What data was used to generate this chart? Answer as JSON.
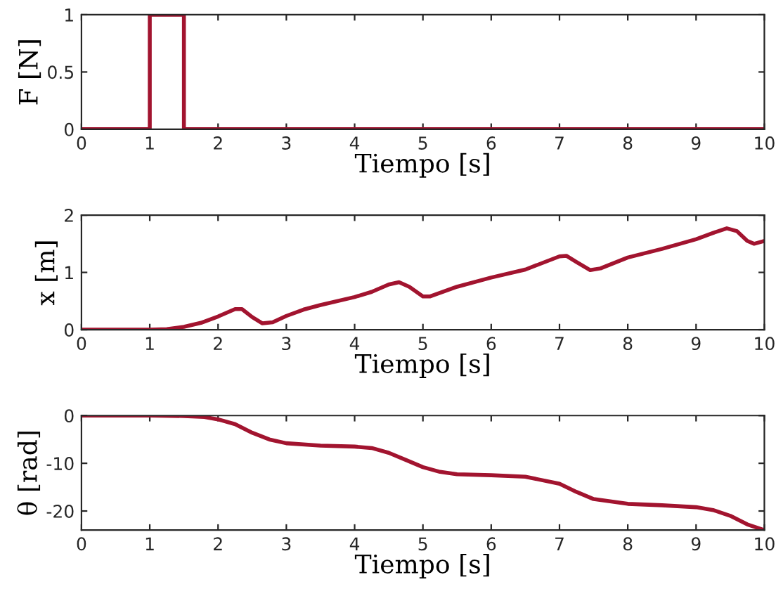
{
  "chart_data": [
    {
      "type": "line",
      "xlabel": "Tiempo [s]",
      "ylabel": "F [N]",
      "xlim": [
        0,
        10
      ],
      "ylim": [
        0,
        1
      ],
      "xticks": [
        0,
        1,
        2,
        3,
        4,
        5,
        6,
        7,
        8,
        9,
        10
      ],
      "yticks": [
        0,
        0.5,
        1
      ],
      "grid": false,
      "legend": false,
      "series": [
        {
          "color": "#a2142f",
          "x": [
            0,
            1,
            1,
            1.5,
            1.5,
            10
          ],
          "values": [
            0,
            0,
            1,
            1,
            0,
            0
          ]
        }
      ]
    },
    {
      "type": "line",
      "xlabel": "Tiempo [s]",
      "ylabel": "x [m]",
      "xlim": [
        0,
        10
      ],
      "ylim": [
        0,
        2
      ],
      "xticks": [
        0,
        1,
        2,
        3,
        4,
        5,
        6,
        7,
        8,
        9,
        10
      ],
      "yticks": [
        0,
        1,
        2
      ],
      "grid": false,
      "legend": false,
      "series": [
        {
          "color": "#a2142f",
          "x": [
            0,
            1,
            1.25,
            1.5,
            1.75,
            2,
            2.25,
            2.35,
            2.5,
            2.65,
            2.8,
            3,
            3.25,
            3.5,
            4,
            4.25,
            4.5,
            4.65,
            4.8,
            5,
            5.1,
            5.5,
            6,
            6.5,
            7,
            7.1,
            7.25,
            7.45,
            7.6,
            8,
            8.5,
            9,
            9.25,
            9.45,
            9.6,
            9.75,
            9.85,
            10
          ],
          "values": [
            0,
            0,
            0.01,
            0.05,
            0.12,
            0.23,
            0.36,
            0.36,
            0.22,
            0.11,
            0.13,
            0.24,
            0.35,
            0.43,
            0.57,
            0.66,
            0.79,
            0.83,
            0.75,
            0.58,
            0.58,
            0.75,
            0.91,
            1.05,
            1.28,
            1.29,
            1.18,
            1.04,
            1.07,
            1.26,
            1.41,
            1.58,
            1.69,
            1.77,
            1.72,
            1.55,
            1.5,
            1.55
          ]
        }
      ]
    },
    {
      "type": "line",
      "xlabel": "Tiempo [s]",
      "ylabel": "θ [rad]",
      "xlim": [
        0,
        10
      ],
      "ylim": [
        -24,
        0
      ],
      "xticks": [
        0,
        1,
        2,
        3,
        4,
        5,
        6,
        7,
        8,
        9,
        10
      ],
      "yticks": [
        -20,
        -10,
        0
      ],
      "grid": false,
      "legend": false,
      "series": [
        {
          "color": "#a2142f",
          "x": [
            0,
            1,
            1.5,
            1.8,
            2,
            2.25,
            2.5,
            2.75,
            3,
            3.5,
            4,
            4.25,
            4.5,
            4.75,
            5,
            5.25,
            5.5,
            6,
            6.5,
            7,
            7.25,
            7.5,
            8,
            8.5,
            9,
            9.25,
            9.5,
            9.75,
            10
          ],
          "values": [
            0,
            0,
            -0.1,
            -0.3,
            -0.8,
            -1.8,
            -3.6,
            -5.0,
            -5.8,
            -6.3,
            -6.5,
            -6.8,
            -7.8,
            -9.3,
            -10.8,
            -11.8,
            -12.3,
            -12.5,
            -12.8,
            -14.3,
            -16.0,
            -17.5,
            -18.5,
            -18.8,
            -19.2,
            -19.8,
            -21.0,
            -22.8,
            -24
          ]
        }
      ]
    }
  ]
}
